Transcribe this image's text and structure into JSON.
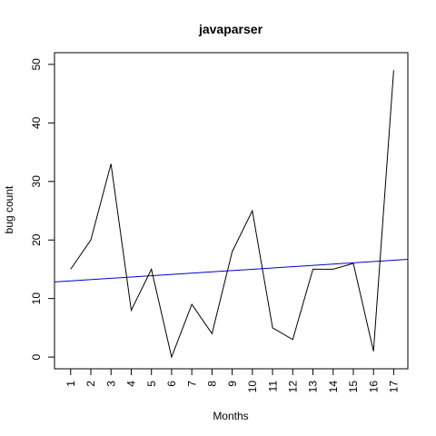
{
  "chart_data": {
    "type": "line",
    "title": "javaparser",
    "xlabel": "Months",
    "ylabel": "bug count",
    "x": [
      1,
      2,
      3,
      4,
      5,
      6,
      7,
      8,
      9,
      10,
      11,
      12,
      13,
      14,
      15,
      16,
      17
    ],
    "x_tick_labels": [
      "1",
      "2",
      "3",
      "4",
      "5",
      "6",
      "7",
      "8",
      "9",
      "10",
      "11",
      "12",
      "13",
      "14",
      "15",
      "16",
      "17"
    ],
    "y_ticks": [
      0,
      10,
      20,
      30,
      40,
      50
    ],
    "y_tick_labels": [
      "0",
      "10",
      "20",
      "30",
      "40",
      "50"
    ],
    "xlim": [
      0.2,
      17.7
    ],
    "ylim": [
      -2,
      52
    ],
    "grid": false,
    "series": [
      {
        "values": [
          15,
          20,
          33,
          8,
          15,
          0,
          9,
          4,
          18,
          25,
          5,
          3,
          15,
          15,
          16,
          1,
          49
        ],
        "color": "#000000"
      },
      {
        "type": "trend",
        "intercept": 12.8,
        "slope": 0.22,
        "color": "#0000cc"
      }
    ]
  }
}
